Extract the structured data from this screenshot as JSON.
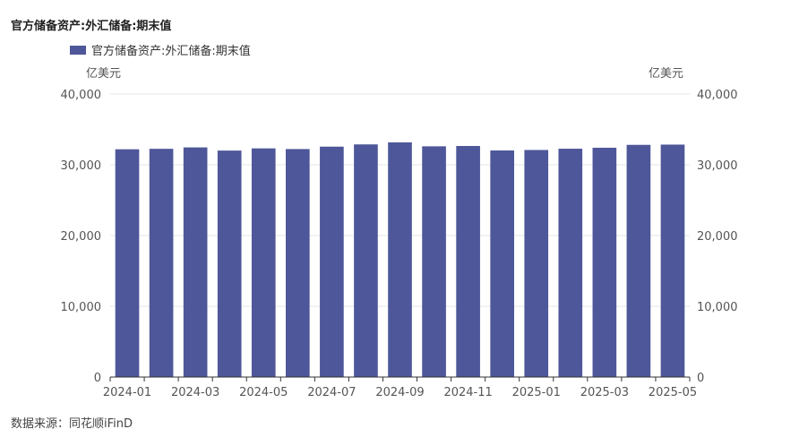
{
  "header": {
    "title": "官方储备资产:外汇储备:期末值"
  },
  "units": {
    "left": "亿美元",
    "right": "亿美元"
  },
  "source": "数据来源：同花顺iFinD",
  "colors": {
    "bar": "#4e5799",
    "grid": "#e6e6e6",
    "axis": "#555555"
  },
  "chart_data": {
    "type": "bar",
    "categories": [
      "2024-01",
      "2024-02",
      "2024-03",
      "2024-04",
      "2024-05",
      "2024-06",
      "2024-07",
      "2024-08",
      "2024-09",
      "2024-10",
      "2024-11",
      "2024-12",
      "2025-01",
      "2025-02",
      "2025-03",
      "2025-04",
      "2025-05"
    ],
    "x_tick_labels": [
      "2024-01",
      "2024-03",
      "2024-05",
      "2024-07",
      "2024-09",
      "2024-11",
      "2025-01",
      "2025-03",
      "2025-05"
    ],
    "series": [
      {
        "name": "官方储备资产:外汇储备:期末值",
        "values": [
          32193,
          32258,
          32457,
          32008,
          32320,
          32224,
          32564,
          32882,
          33164,
          32610,
          32659,
          32024,
          32093,
          32272,
          32407,
          32817,
          32853
        ]
      }
    ],
    "ylim": [
      0,
      40000
    ],
    "y_ticks": [
      0,
      10000,
      20000,
      30000,
      40000
    ],
    "y_tick_labels": [
      "0",
      "10,000",
      "20,000",
      "30,000",
      "40,000"
    ],
    "legend": "top-left",
    "grid": true
  }
}
